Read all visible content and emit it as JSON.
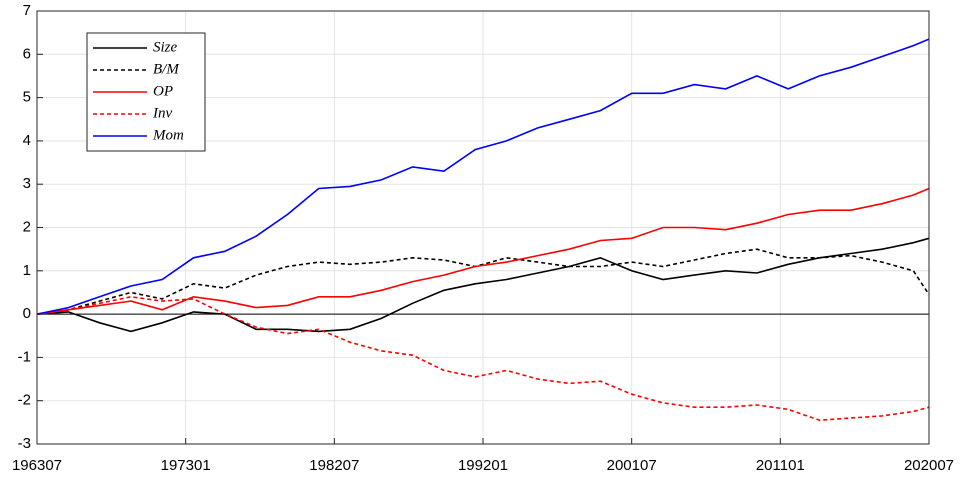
{
  "chart_data": {
    "type": "line",
    "x": [
      1963.5,
      1965.5,
      1967.5,
      1969.5,
      1971.5,
      1973.5,
      1975.5,
      1977.5,
      1979.5,
      1981.5,
      1983.5,
      1985.5,
      1987.5,
      1989.5,
      1991.5,
      1993.5,
      1995.5,
      1997.5,
      1999.5,
      2001.5,
      2003.5,
      2005.5,
      2007.5,
      2009.5,
      2011.5,
      2013.5,
      2015.5,
      2017.5,
      2019.5,
      2020.5
    ],
    "series": [
      {
        "name": "Size",
        "color": "#000000",
        "dashed": false,
        "values": [
          0,
          0.05,
          -0.2,
          -0.4,
          -0.2,
          0.05,
          0.0,
          -0.35,
          -0.35,
          -0.4,
          -0.35,
          -0.1,
          0.25,
          0.55,
          0.7,
          0.8,
          0.95,
          1.1,
          1.3,
          1.0,
          0.8,
          0.9,
          1.0,
          0.95,
          1.15,
          1.3,
          1.4,
          1.5,
          1.65,
          1.75
        ]
      },
      {
        "name": "B/M",
        "color": "#000000",
        "dashed": true,
        "values": [
          0,
          0.1,
          0.3,
          0.5,
          0.35,
          0.7,
          0.6,
          0.9,
          1.1,
          1.2,
          1.15,
          1.2,
          1.3,
          1.25,
          1.1,
          1.3,
          1.2,
          1.1,
          1.1,
          1.2,
          1.1,
          1.25,
          1.4,
          1.5,
          1.3,
          1.3,
          1.35,
          1.2,
          1.0,
          0.45
        ]
      },
      {
        "name": "OP",
        "color": "#ff0000",
        "dashed": false,
        "values": [
          0,
          0.1,
          0.2,
          0.3,
          0.1,
          0.4,
          0.3,
          0.15,
          0.2,
          0.4,
          0.4,
          0.55,
          0.75,
          0.9,
          1.1,
          1.2,
          1.35,
          1.5,
          1.7,
          1.75,
          2.0,
          2.0,
          1.95,
          2.1,
          2.3,
          2.4,
          2.4,
          2.55,
          2.75,
          2.9
        ]
      },
      {
        "name": "Inv",
        "color": "#ff0000",
        "dashed": true,
        "values": [
          0,
          0.1,
          0.25,
          0.4,
          0.3,
          0.35,
          0.0,
          -0.3,
          -0.45,
          -0.35,
          -0.65,
          -0.85,
          -0.95,
          -1.3,
          -1.45,
          -1.3,
          -1.5,
          -1.6,
          -1.55,
          -1.85,
          -2.05,
          -2.15,
          -2.15,
          -2.1,
          -2.2,
          -2.45,
          -2.4,
          -2.35,
          -2.25,
          -2.15
        ]
      },
      {
        "name": "Mom",
        "color": "#0000ff",
        "dashed": false,
        "values": [
          0,
          0.15,
          0.4,
          0.65,
          0.8,
          1.3,
          1.45,
          1.8,
          2.3,
          2.9,
          2.95,
          3.1,
          3.4,
          3.3,
          3.8,
          4.0,
          4.3,
          4.5,
          4.7,
          5.1,
          5.1,
          5.3,
          5.2,
          5.5,
          5.2,
          5.5,
          5.7,
          5.95,
          6.2,
          6.35
        ]
      }
    ],
    "xlim": [
      1963.5,
      2020.5
    ],
    "xticks": [
      {
        "value": 1963.5,
        "label": "196307"
      },
      {
        "value": 1973.0,
        "label": "197301"
      },
      {
        "value": 1982.5,
        "label": "198207"
      },
      {
        "value": 1992.0,
        "label": "199201"
      },
      {
        "value": 2001.5,
        "label": "200107"
      },
      {
        "value": 2011.0,
        "label": "201101"
      },
      {
        "value": 2020.5,
        "label": "202007"
      }
    ],
    "ylim": [
      -3,
      7
    ],
    "yticks": [
      -3,
      -2,
      -1,
      0,
      1,
      2,
      3,
      4,
      5,
      6,
      7
    ],
    "grid": true,
    "legend": "upper-left"
  }
}
